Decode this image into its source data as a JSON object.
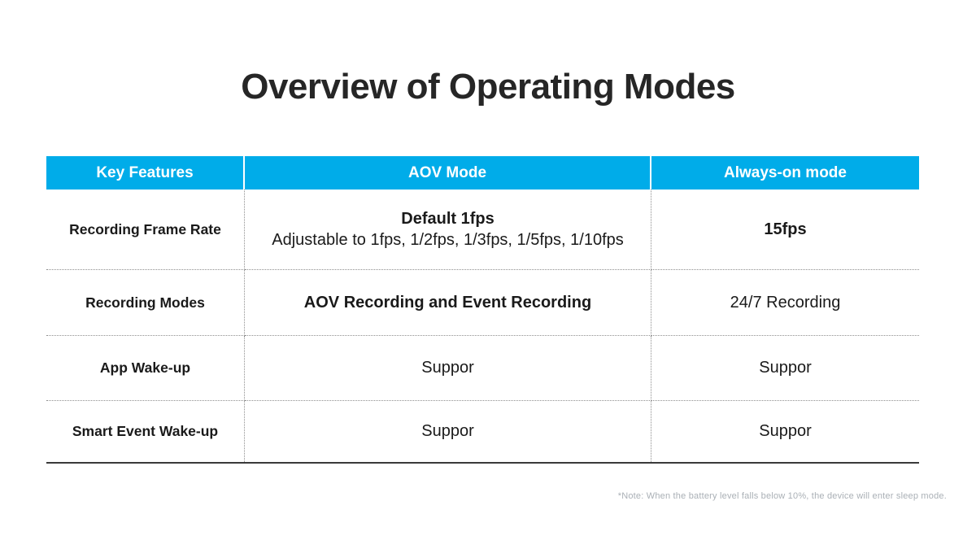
{
  "page": {
    "title": "Overview of Operating Modes",
    "note": "*Note: When the battery level falls below 10%, the device will enter sleep mode."
  },
  "colors": {
    "header_bg": "#00ace9",
    "header_text": "#ffffff",
    "body_text": "#1a1a1a",
    "grid_dotted": "#8f8f8f",
    "bottom_rule": "#3a3a3a",
    "note_text": "#aab0b6"
  },
  "table": {
    "columns": [
      "Key Features",
      "AOV Mode",
      "Always-on mode"
    ],
    "rows": [
      {
        "feature": "Recording Frame Rate",
        "aov_line1": "Default 1fps",
        "aov_line2": "Adjustable to 1fps, 1/2fps, 1/3fps, 1/5fps, 1/10fps",
        "always_on": "15fps"
      },
      {
        "feature": "Recording Modes",
        "aov_line1": "AOV Recording and Event Recording",
        "always_on": "24/7 Recording"
      },
      {
        "feature": "App Wake-up",
        "aov_line1": "Suppor",
        "always_on": "Suppor"
      },
      {
        "feature": "Smart Event Wake-up",
        "aov_line1": "Suppor",
        "always_on": "Suppor"
      }
    ]
  }
}
